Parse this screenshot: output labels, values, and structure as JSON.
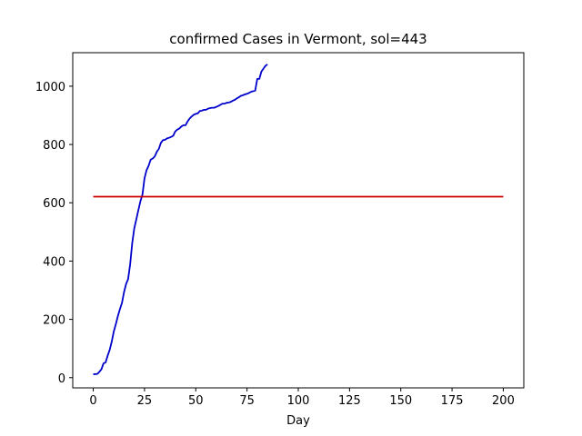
{
  "chart_data": {
    "type": "line",
    "title": "confirmed Cases in Vermont, sol=443",
    "xlabel": "Day",
    "ylabel": "",
    "xlim": [
      -10,
      210
    ],
    "ylim": [
      -35,
      1115
    ],
    "xticks": [
      0,
      25,
      50,
      75,
      100,
      125,
      150,
      175,
      200
    ],
    "yticks": [
      0,
      200,
      400,
      600,
      800,
      1000
    ],
    "grid": false,
    "colors": {
      "cases": "#0000cc",
      "reference": "#cc0000"
    },
    "series": [
      {
        "kind": "cases",
        "x": [
          0,
          1,
          2,
          3,
          4,
          5,
          6,
          7,
          8,
          9,
          10,
          11,
          12,
          13,
          14,
          15,
          16,
          17,
          18,
          19,
          20,
          21,
          22,
          23,
          24,
          25,
          26,
          27,
          28,
          29,
          30,
          31,
          32,
          33,
          34,
          35,
          36,
          37,
          38,
          39,
          40,
          41,
          42,
          43,
          44,
          45,
          46,
          47,
          48,
          49,
          50,
          51,
          52,
          53,
          54,
          55,
          56,
          57,
          58,
          59,
          60,
          61,
          62,
          63,
          64,
          65,
          66,
          67,
          68,
          69,
          70,
          71,
          72,
          73,
          74,
          75,
          76,
          77,
          78,
          79,
          80,
          81,
          82,
          83,
          84,
          85
        ],
        "y": [
          12,
          12,
          13,
          20,
          29,
          49,
          52,
          75,
          95,
          123,
          158,
          183,
          211,
          235,
          256,
          293,
          321,
          338,
          389,
          461,
          512,
          543,
          575,
          605,
          628,
          684,
          712,
          727,
          748,
          752,
          759,
          775,
          785,
          806,
          815,
          816,
          821,
          823,
          826,
          830,
          845,
          851,
          855,
          862,
          866,
          866,
          879,
          889,
          896,
          902,
          905,
          907,
          915,
          916,
          919,
          919,
          923,
          925,
          926,
          926,
          929,
          932,
          936,
          940,
          940,
          943,
          944,
          946,
          950,
          953,
          958,
          962,
          967,
          969,
          972,
          974,
          977,
          981,
          983,
          985,
          1025,
          1025,
          1050,
          1060,
          1070,
          1075
        ]
      },
      {
        "kind": "reference",
        "x": [
          0,
          200
        ],
        "y": [
          621,
          621
        ]
      }
    ]
  }
}
